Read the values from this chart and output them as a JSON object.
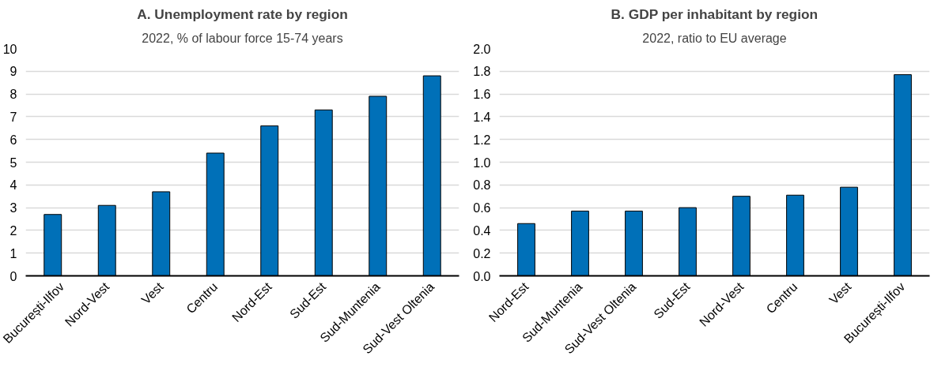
{
  "chart_data": [
    {
      "type": "bar",
      "title": "A. Unemployment rate by region",
      "subtitle": "2022, % of labour force 15-74 years",
      "categories": [
        "București-Ilfov",
        "Nord-Vest",
        "Vest",
        "Centru",
        "Nord-Est",
        "Sud-Est",
        "Sud-Muntenia",
        "Sud-Vest Oltenia"
      ],
      "values": [
        2.7,
        3.1,
        3.7,
        5.4,
        6.6,
        7.3,
        7.9,
        8.8
      ],
      "color": "#0070b8",
      "ylim": [
        0,
        10
      ],
      "yticks": [
        0,
        1,
        2,
        3,
        4,
        5,
        6,
        7,
        8,
        9,
        10
      ],
      "grid": "y"
    },
    {
      "type": "bar",
      "title": "B. GDP per inhabitant by region",
      "subtitle": "2022, ratio to EU average",
      "categories": [
        "Nord-Est",
        "Sud-Muntenia",
        "Sud-Vest Oltenia",
        "Sud-Est",
        "Nord-Vest",
        "Centru",
        "Vest",
        "București-Ilfov"
      ],
      "values": [
        0.46,
        0.57,
        0.57,
        0.6,
        0.7,
        0.71,
        0.78,
        1.77
      ],
      "color": "#0070b8",
      "ylim": [
        0,
        2.0
      ],
      "yticks": [
        {
          "value": 0,
          "label": "0.0"
        },
        {
          "value": 0.2,
          "label": "0.2"
        },
        {
          "value": 0.4,
          "label": "0.4"
        },
        {
          "value": 0.6,
          "label": "0.6"
        },
        {
          "value": 0.8,
          "label": "0.8"
        },
        {
          "value": 1.0,
          "label": "1.0"
        },
        {
          "value": 1.2,
          "label": "1.2"
        },
        {
          "value": 1.4,
          "label": "1.4"
        },
        {
          "value": 1.6,
          "label": "1.6"
        },
        {
          "value": 1.8,
          "label": "1.8"
        },
        {
          "value": 2.0,
          "label": "2.0"
        }
      ],
      "grid": "y"
    }
  ]
}
